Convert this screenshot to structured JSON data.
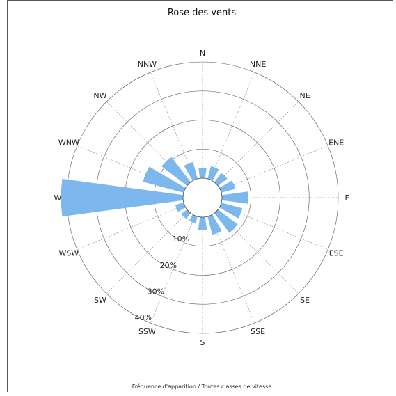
{
  "chart_data": {
    "type": "rose",
    "title": "Rose des vents",
    "footer": "Fréquence d'apparition / Toutes classes de vitesse",
    "directions": [
      "N",
      "NNE",
      "NE",
      "ENE",
      "E",
      "ESE",
      "SE",
      "SSE",
      "S",
      "SSW",
      "SW",
      "WSW",
      "W",
      "WNW",
      "NW",
      "NNW"
    ],
    "values": [
      3.5,
      4.5,
      4.0,
      5.0,
      9.0,
      7.5,
      8.5,
      6.5,
      4.5,
      2.5,
      2.5,
      3.0,
      42.0,
      14.5,
      11.0,
      6.0
    ],
    "ring_values": [
      10,
      20,
      30,
      40
    ],
    "ring_labels": [
      "10%",
      "20%",
      "30%",
      "40%"
    ],
    "rmax": 40,
    "bar_color": "#7cb8ee",
    "grid": true
  }
}
